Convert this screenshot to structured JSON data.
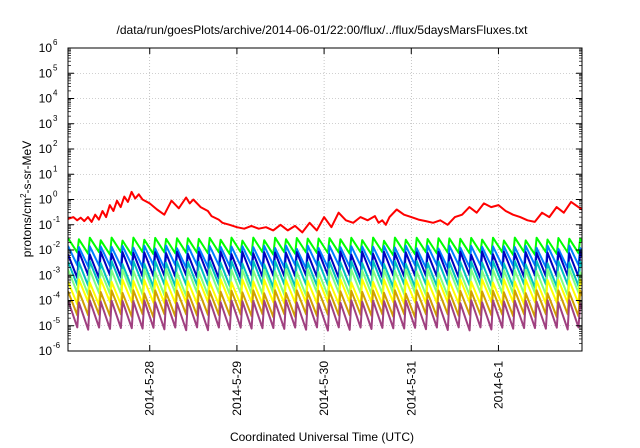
{
  "chart_data": {
    "type": "line",
    "title": "/data/run/goesPlots/archive/2014-06-01/22:00/flux/../flux/5daysMarsFluxes.txt",
    "xlabel": "Coordinated Universal Time (UTC)",
    "ylabel": {
      "base": "protons/cm",
      "sup": "2",
      "rest": "-s-sr-MeV"
    },
    "yscale": "log",
    "ylim": [
      1e-06,
      1000000.0
    ],
    "yticks": [
      {
        "value": 1e-06,
        "base": "10",
        "exp": "-6"
      },
      {
        "value": 1e-05,
        "base": "10",
        "exp": "-5"
      },
      {
        "value": 0.0001,
        "base": "10",
        "exp": "-4"
      },
      {
        "value": 0.001,
        "base": "10",
        "exp": "-3"
      },
      {
        "value": 0.01,
        "base": "10",
        "exp": "-2"
      },
      {
        "value": 0.1,
        "base": "10",
        "exp": "-1"
      },
      {
        "value": 1,
        "base": "10",
        "exp": "0"
      },
      {
        "value": 10,
        "base": "10",
        "exp": "1"
      },
      {
        "value": 100,
        "base": "10",
        "exp": "2"
      },
      {
        "value": 1000,
        "base": "10",
        "exp": "3"
      },
      {
        "value": 10000,
        "base": "10",
        "exp": "4"
      },
      {
        "value": 100000,
        "base": "10",
        "exp": "5"
      },
      {
        "value": 1000000,
        "base": "10",
        "exp": "6"
      }
    ],
    "xlim": [
      "2014-05-27T01:30",
      "2014-06-01T23:00"
    ],
    "xticks": [
      {
        "value": "2014-05-28T00:00",
        "label": "2014-5-28"
      },
      {
        "value": "2014-05-29T00:00",
        "label": "2014-5-29"
      },
      {
        "value": "2014-05-30T00:00",
        "label": "2014-5-30"
      },
      {
        "value": "2014-05-31T00:00",
        "label": "2014-5-31"
      },
      {
        "value": "2014-06-01T00:00",
        "label": "2014-6-1"
      }
    ],
    "grid": true,
    "legend": "none",
    "series": [
      {
        "color": "#ff0000",
        "x": [
          "2014-05-27T01:30",
          "2014-05-27T03:00",
          "2014-05-27T04:00",
          "2014-05-27T05:00",
          "2014-05-27T06:00",
          "2014-05-27T07:00",
          "2014-05-27T08:00",
          "2014-05-27T09:00",
          "2014-05-27T10:00",
          "2014-05-27T11:00",
          "2014-05-27T12:00",
          "2014-05-27T13:00",
          "2014-05-27T14:00",
          "2014-05-27T15:00",
          "2014-05-27T16:00",
          "2014-05-27T17:00",
          "2014-05-27T18:00",
          "2014-05-27T19:00",
          "2014-05-27T20:00",
          "2014-05-27T21:00",
          "2014-05-27T22:00",
          "2014-05-28T00:00",
          "2014-05-28T02:00",
          "2014-05-28T04:00",
          "2014-05-28T06:00",
          "2014-05-28T08:00",
          "2014-05-28T10:00",
          "2014-05-28T11:00",
          "2014-05-28T12:00",
          "2014-05-28T14:00",
          "2014-05-28T16:00",
          "2014-05-28T17:00",
          "2014-05-28T19:00",
          "2014-05-28T20:00",
          "2014-05-28T22:00",
          "2014-05-29T00:00",
          "2014-05-29T02:00",
          "2014-05-29T04:00",
          "2014-05-29T06:00",
          "2014-05-29T08:00",
          "2014-05-29T10:00",
          "2014-05-29T12:00",
          "2014-05-29T14:00",
          "2014-05-29T16:00",
          "2014-05-29T18:00",
          "2014-05-29T20:00",
          "2014-05-29T22:00",
          "2014-05-30T00:00",
          "2014-05-30T02:00",
          "2014-05-30T04:00",
          "2014-05-30T06:00",
          "2014-05-30T08:00",
          "2014-05-30T10:00",
          "2014-05-30T12:00",
          "2014-05-30T14:00",
          "2014-05-30T15:00",
          "2014-05-30T16:00",
          "2014-05-30T17:00",
          "2014-05-30T18:00",
          "2014-05-30T20:00",
          "2014-05-30T22:00",
          "2014-05-31T00:00",
          "2014-05-31T02:00",
          "2014-05-31T04:00",
          "2014-05-31T06:00",
          "2014-05-31T08:00",
          "2014-05-31T10:00",
          "2014-05-31T12:00",
          "2014-05-31T14:00",
          "2014-05-31T16:00",
          "2014-05-31T18:00",
          "2014-05-31T20:00",
          "2014-05-31T22:00",
          "2014-06-01T00:00",
          "2014-06-01T02:00",
          "2014-06-01T04:00",
          "2014-06-01T06:00",
          "2014-06-01T08:00",
          "2014-06-01T10:00",
          "2014-06-01T12:00",
          "2014-06-01T14:00",
          "2014-06-01T16:00",
          "2014-06-01T18:00",
          "2014-06-01T20:00",
          "2014-06-01T22:00",
          "2014-06-01T23:00"
        ],
        "y": [
          0.17,
          0.2,
          0.15,
          0.19,
          0.14,
          0.2,
          0.13,
          0.25,
          0.16,
          0.35,
          0.2,
          0.6,
          0.35,
          0.9,
          0.5,
          1.3,
          0.8,
          2.0,
          1.1,
          1.6,
          1.0,
          0.7,
          0.4,
          0.25,
          0.9,
          0.45,
          1.2,
          0.7,
          1.0,
          0.5,
          0.35,
          0.22,
          0.16,
          0.12,
          0.1,
          0.08,
          0.07,
          0.09,
          0.07,
          0.08,
          0.06,
          0.1,
          0.06,
          0.09,
          0.05,
          0.12,
          0.06,
          0.2,
          0.08,
          0.3,
          0.15,
          0.12,
          0.2,
          0.15,
          0.22,
          0.12,
          0.15,
          0.1,
          0.2,
          0.4,
          0.25,
          0.2,
          0.16,
          0.14,
          0.12,
          0.15,
          0.1,
          0.2,
          0.25,
          0.5,
          0.3,
          0.7,
          0.5,
          0.6,
          0.35,
          0.25,
          0.2,
          0.15,
          0.13,
          0.3,
          0.2,
          0.5,
          0.3,
          0.8,
          0.5,
          0.4
        ]
      },
      {
        "color": "#00ff00",
        "base": 0.016,
        "amp": 0.011,
        "period_hours": 3
      },
      {
        "color": "#0080ff",
        "base": 0.007,
        "amp": 0.006,
        "period_hours": 3
      },
      {
        "color": "#0000c0",
        "base": 0.0035,
        "amp": 0.004,
        "period_hours": 3
      },
      {
        "color": "#00c0c0",
        "base": 0.0015,
        "amp": 0.0017,
        "period_hours": 3
      },
      {
        "color": "#80ff80",
        "base": 0.0007,
        "amp": 0.0008,
        "period_hours": 3
      },
      {
        "color": "#ffff00",
        "base": 0.0003,
        "amp": 0.0003,
        "period_hours": 3
      },
      {
        "color": "#d0a000",
        "base": 0.0001,
        "amp": 0.00012,
        "period_hours": 3
      },
      {
        "color": "#a04080",
        "base": 3e-05,
        "amp": 6e-05,
        "period_hours": 3
      }
    ]
  }
}
